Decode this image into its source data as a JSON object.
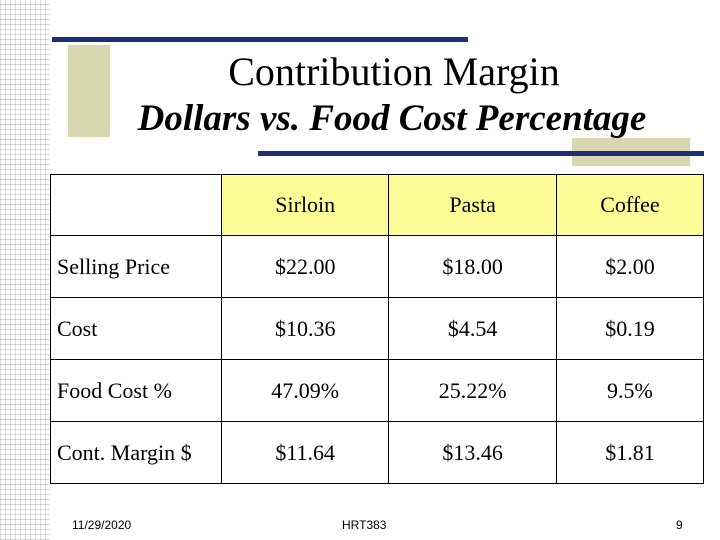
{
  "slide": {
    "title": "Contribution Margin",
    "subtitle": "Dollars vs. Food Cost Percentage"
  },
  "table": {
    "columns": [
      "Sirloin",
      "Pasta",
      "Coffee"
    ],
    "rows": [
      {
        "label": "Selling Price",
        "values": [
          "$22.00",
          "$18.00",
          "$2.00"
        ]
      },
      {
        "label": "Cost",
        "values": [
          "$10.36",
          "$4.54",
          "$0.19"
        ]
      },
      {
        "label": "Food Cost %",
        "values": [
          "47.09%",
          "25.22%",
          "9.5%"
        ]
      },
      {
        "label": "Cont. Margin $",
        "values": [
          "$11.64",
          "$13.46",
          "$1.81"
        ]
      }
    ],
    "header_highlight_color": "#fdfc96"
  },
  "footer": {
    "date": "11/29/2020",
    "course": "HRT383",
    "page": "9"
  },
  "colors": {
    "accent_line": "#1c2f78",
    "deco_box": "#d8d8b0"
  }
}
